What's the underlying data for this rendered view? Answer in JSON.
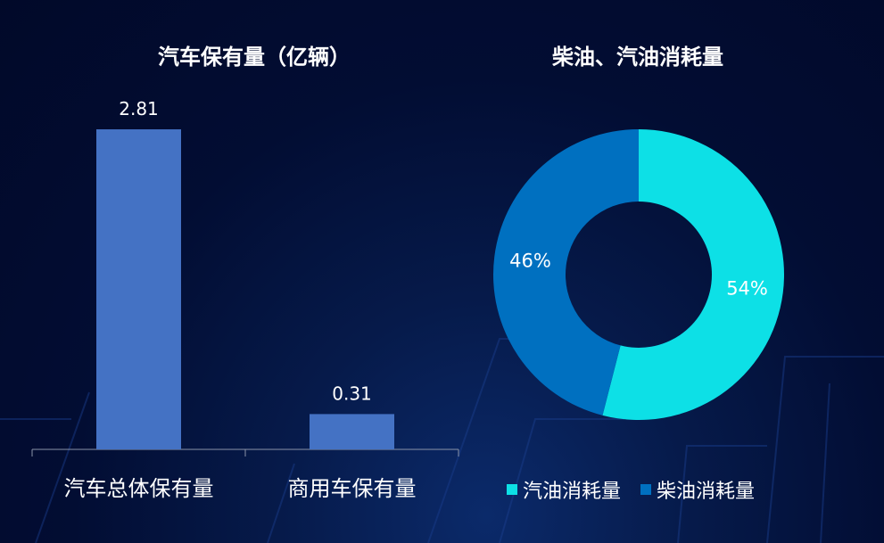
{
  "chart_data": [
    {
      "type": "bar",
      "title": "汽车保有量（亿辆）",
      "categories": [
        "汽车总体保有量",
        "商用车保有量"
      ],
      "values": [
        2.81,
        0.31
      ],
      "value_labels": [
        "2.81",
        "0.31"
      ],
      "ylim": [
        0,
        3.1
      ],
      "xlabel": "",
      "ylabel": "",
      "grid": false,
      "bar_color": "#4472c4"
    },
    {
      "type": "pie",
      "donut": true,
      "title": "柴油、汽油消耗量",
      "slices": [
        {
          "label": "汽油消耗量",
          "value": 54,
          "value_label": "54%",
          "color": "#0de0e6"
        },
        {
          "label": "柴油消耗量",
          "value": 46,
          "value_label": "46%",
          "color": "#0070c0"
        }
      ],
      "legend_position": "bottom"
    }
  ]
}
